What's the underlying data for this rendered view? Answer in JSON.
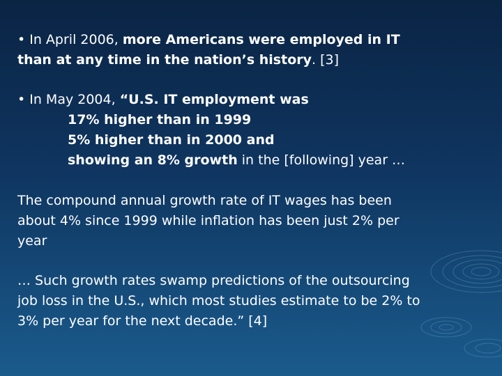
{
  "paragraphs": [
    {
      "lines": [
        [
          "• In April 2006, ",
          "more Americans were employed in IT"
        ],
        [
          "than at any time in the nation’s history",
          ". [3]"
        ]
      ]
    },
    {
      "lines": [
        [
          "• In May 2004, ",
          "“U.S. IT employment was"
        ],
        [
          "17% higher than in 1999"
        ],
        [
          "5% higher than in 2000 and"
        ],
        [
          "showing an 8% growth",
          " in the [following] year …"
        ]
      ]
    },
    {
      "lines": [
        [
          "The compound annual growth rate of IT wages has been"
        ],
        [
          "about 4% since 1999 while inflation has been just 2% per"
        ],
        [
          "year"
        ]
      ]
    },
    {
      "lines": [
        [
          "… Such growth rates swamp predictions of the outsourcing"
        ],
        [
          "job loss in the U.S., which most studies estimate to be 2% to"
        ],
        [
          "3% per year for the next decade.” [4]"
        ]
      ]
    }
  ]
}
